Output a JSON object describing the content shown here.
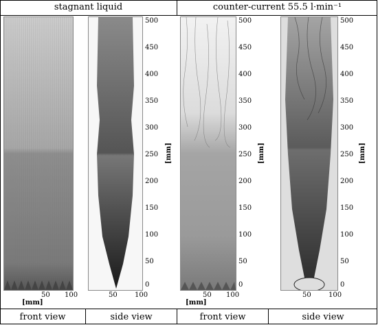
{
  "header": {
    "left": "stagnant liquid",
    "right": "counter-current 55.5 l·min⁻¹"
  },
  "footer": {
    "col1": "front view",
    "col2": "side view",
    "col3": "front view",
    "col4": "side view"
  },
  "axis": {
    "y_unit": "[mm]",
    "x_unit": "[mm]",
    "y_ticks": [
      "500",
      "450",
      "400",
      "350",
      "300",
      "250",
      "200",
      "150",
      "100",
      "50",
      "0"
    ],
    "x_ticks_front": [
      "50",
      "100"
    ],
    "x_ticks_side": [
      "50",
      "100"
    ]
  },
  "panels": [
    {
      "name": "stagnant-front",
      "view": "front view"
    },
    {
      "name": "stagnant-side",
      "view": "side view"
    },
    {
      "name": "countercurrent-front",
      "view": "front view"
    },
    {
      "name": "countercurrent-side",
      "view": "side view"
    }
  ]
}
